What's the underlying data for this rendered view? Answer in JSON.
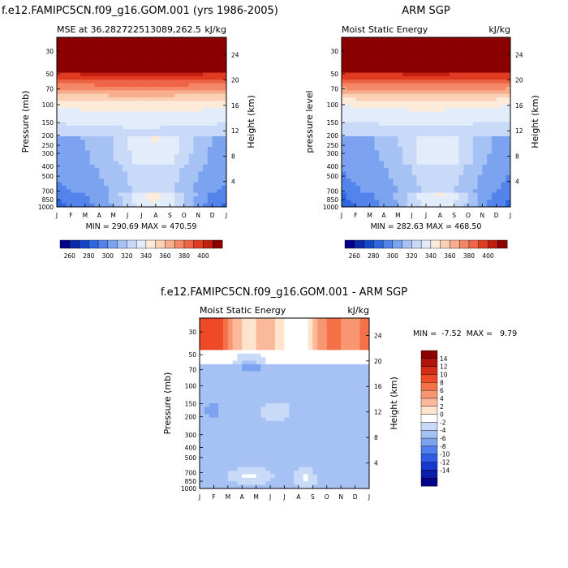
{
  "chart_data": [
    {
      "type": "contour",
      "title": "f.e12.FAMIPC5CN.f09_g16.GOM.001 (yrs 1986-2005)",
      "subtitle_left": "MSE at 36.282722513089,262.5",
      "subtitle_right": "kJ/kg",
      "xlabel": "",
      "ylabel": "Pressure (mb)",
      "ylabel_right": "Height (km)",
      "x_ticks": [
        "J",
        "F",
        "M",
        "A",
        "M",
        "J",
        "J",
        "A",
        "S",
        "O",
        "N",
        "D",
        "J"
      ],
      "pressure_ticks": [
        30,
        50,
        70,
        100,
        150,
        200,
        250,
        300,
        400,
        500,
        700,
        850,
        1000
      ],
      "height_ticks": [
        24,
        20,
        16,
        12,
        8,
        4
      ],
      "minmax_text": "MIN = 290.69  MAX = 470.59",
      "field": "full"
    },
    {
      "type": "contour",
      "title": "ARM SGP",
      "subtitle_left": "Moist Static Energy",
      "subtitle_right": "kJ/kg",
      "xlabel": "",
      "ylabel": "pressure level",
      "ylabel_right": "Height (km)",
      "x_ticks": [
        "J",
        "F",
        "M",
        "A",
        "M",
        "J",
        "J",
        "A",
        "S",
        "O",
        "N",
        "D",
        "J"
      ],
      "pressure_ticks": [
        30,
        50,
        70,
        100,
        150,
        200,
        250,
        300,
        400,
        500,
        700,
        850,
        1000
      ],
      "height_ticks": [
        24,
        20,
        16,
        12,
        8,
        4
      ],
      "minmax_text": "MIN = 282.63  MAX = 468.50",
      "field": "full_obs"
    },
    {
      "type": "contour",
      "title": "f.e12.FAMIPC5CN.f09_g16.GOM.001 - ARM SGP",
      "subtitle_left": "Moist Static Energy",
      "subtitle_right": "kJ/kg",
      "xlabel": "",
      "ylabel": "Pressure (mb)",
      "ylabel_right": "Height (km)",
      "x_ticks": [
        "J",
        "F",
        "M",
        "A",
        "M",
        "J",
        "J",
        "A",
        "S",
        "O",
        "N",
        "D",
        "J"
      ],
      "pressure_ticks": [
        30,
        50,
        70,
        100,
        150,
        200,
        300,
        400,
        500,
        700,
        850,
        1000
      ],
      "height_ticks": [
        24,
        20,
        16,
        12,
        8,
        4
      ],
      "minmax_text": "MIN =  -7.52  MAX =   9.79",
      "field": "diff"
    }
  ],
  "colorbar_full": {
    "labels": [
      "260",
      "280",
      "300",
      "320",
      "340",
      "360",
      "380",
      "400"
    ],
    "levels": [
      250,
      260,
      270,
      280,
      290,
      300,
      310,
      320,
      330,
      340,
      350,
      360,
      370,
      380,
      390,
      400,
      410
    ],
    "colors": [
      "#00008b",
      "#0a2aa8",
      "#1645c8",
      "#2e66e0",
      "#5384ec",
      "#7ca3f0",
      "#a6c2f4",
      "#c8daf8",
      "#e2ecfb",
      "#fdebd9",
      "#fbd0b4",
      "#f7ae8c",
      "#f48866",
      "#ef6444",
      "#df3b22",
      "#c01e0e",
      "#8b0000"
    ]
  },
  "colorbar_diff": {
    "labels": [
      "14",
      "12",
      "10",
      "8",
      "6",
      "4",
      "2",
      "0",
      "-2",
      "-4",
      "-6",
      "-8",
      "-10",
      "-12",
      "-14"
    ],
    "colors": [
      "#8b0000",
      "#b0140c",
      "#d32d17",
      "#ef4a28",
      "#f57148",
      "#f89672",
      "#fab99b",
      "#fde4cc",
      "#ffffff",
      "#c8daf8",
      "#a6c2f4",
      "#7ca3f0",
      "#4f7fee",
      "#2e5ce8",
      "#1637d0",
      "#0a1ea8",
      "#00008b"
    ]
  }
}
